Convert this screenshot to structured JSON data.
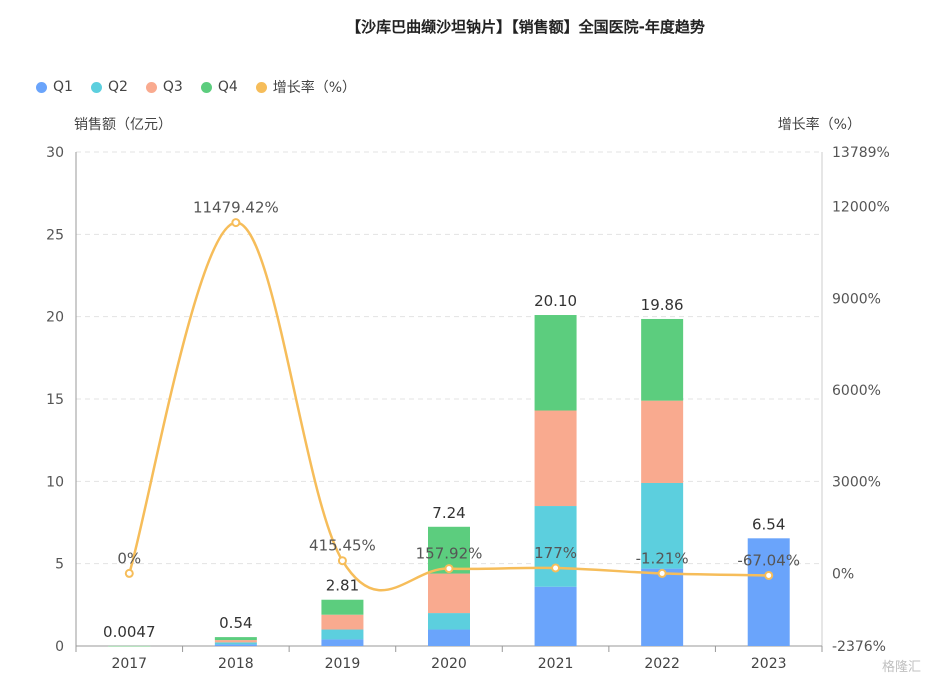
{
  "title": "【沙库巴曲缬沙坦钠片】【销售额】全国医院-年度趋势",
  "ylabel_left": "销售额（亿元）",
  "ylabel_right": "增长率（%）",
  "watermark": "格隆汇",
  "legend": [
    {
      "name": "Q1",
      "color": "#6aa4fb"
    },
    {
      "name": "Q2",
      "color": "#5ccfde"
    },
    {
      "name": "Q3",
      "color": "#f9aa8f"
    },
    {
      "name": "Q4",
      "color": "#5ccd7e"
    },
    {
      "name": "增长率（%）",
      "color": "#f6bd5a"
    }
  ],
  "chart_data": {
    "type": "bar",
    "stacked": true,
    "categories": [
      "2017",
      "2018",
      "2019",
      "2020",
      "2021",
      "2022",
      "2023"
    ],
    "series": [
      {
        "name": "Q1",
        "color": "#6aa4fb",
        "values": [
          0.001,
          0.1,
          0.4,
          1.0,
          3.6,
          4.7,
          6.54
        ]
      },
      {
        "name": "Q2",
        "color": "#5ccfde",
        "values": [
          0.001,
          0.12,
          0.6,
          1.0,
          4.9,
          5.2,
          0
        ]
      },
      {
        "name": "Q3",
        "color": "#f9aa8f",
        "values": [
          0.001,
          0.14,
          0.9,
          2.4,
          5.8,
          5.0,
          0
        ]
      },
      {
        "name": "Q4",
        "color": "#5ccd7e",
        "values": [
          0.0017,
          0.18,
          0.91,
          2.84,
          5.8,
          4.96,
          0
        ]
      }
    ],
    "totals": [
      0.0047,
      0.54,
      2.81,
      7.24,
      20.1,
      19.86,
      6.54
    ],
    "total_labels": [
      "0.0047",
      "0.54",
      "2.81",
      "7.24",
      "20.10",
      "19.86",
      "6.54"
    ],
    "growth": {
      "name": "增长率（%）",
      "color": "#f6bd5a",
      "values": [
        0,
        11479.42,
        415.45,
        157.92,
        177,
        -1.21,
        -67.04
      ],
      "labels": [
        "0%",
        "11479.42%",
        "415.45%",
        "157.92%",
        "177%",
        "-1.21%",
        "-67.04%"
      ]
    },
    "ylim_left": [
      0,
      30
    ],
    "yticks_left": [
      "0",
      "5",
      "10",
      "15",
      "20",
      "25",
      "30"
    ],
    "ylim_right": [
      -2376,
      13789
    ],
    "yticks_right": [
      {
        "value": -2376,
        "label": "-2376%"
      },
      {
        "value": 0,
        "label": "0%"
      },
      {
        "value": 3000,
        "label": "3000%"
      },
      {
        "value": 6000,
        "label": "6000%"
      },
      {
        "value": 9000,
        "label": "9000%"
      },
      {
        "value": 12000,
        "label": "12000%"
      },
      {
        "value": 13789,
        "label": "13789%"
      }
    ],
    "grid": true,
    "legend_position": "top-left"
  }
}
